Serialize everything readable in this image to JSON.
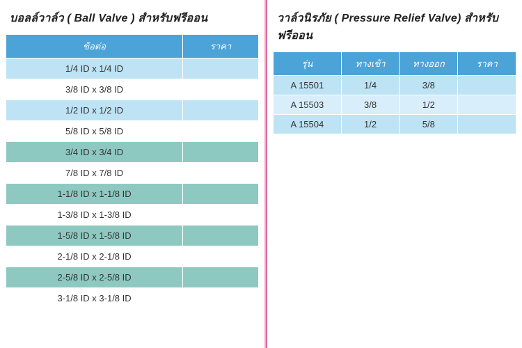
{
  "left": {
    "title": "บอลล์วาล์ว ( Ball Valve ) สำหรับฟรีออน",
    "columns": [
      "ข้อต่อ",
      "ราคา"
    ],
    "col_widths": [
      "70%",
      "30%"
    ],
    "header_bg": "#4ba3d8",
    "header_fg": "#ffffff",
    "row_colors_alt": [
      "#bde3f4",
      "#ffffff",
      "#bde3f4",
      "#ffffff",
      "#8ec9c1",
      "#ffffff",
      "#8ec9c1",
      "#ffffff",
      "#8ec9c1",
      "#ffffff",
      "#8ec9c1",
      "#ffffff"
    ],
    "rows": [
      [
        "1/4 ID x 1/4 ID",
        ""
      ],
      [
        "3/8 ID x 3/8 ID",
        ""
      ],
      [
        "1/2 ID x 1/2 ID",
        ""
      ],
      [
        "5/8 ID x 5/8 ID",
        ""
      ],
      [
        "3/4 ID x 3/4 ID",
        ""
      ],
      [
        "7/8 ID x 7/8 ID",
        ""
      ],
      [
        "1-1/8 ID x 1-1/8 ID",
        ""
      ],
      [
        "1-3/8 ID x 1-3/8 ID",
        ""
      ],
      [
        "1-5/8 ID x 1-5/8 ID",
        ""
      ],
      [
        "2-1/8 ID x 2-1/8 ID",
        ""
      ],
      [
        "2-5/8 ID x 2-5/8 ID",
        ""
      ],
      [
        "3-1/8 ID x 3-1/8 ID",
        ""
      ]
    ]
  },
  "right": {
    "title": "วาล์วนิรภัย  ( Pressure Relief Valve) สำหรับฟรีออน",
    "columns": [
      "รุ่น",
      "ทางเข้า",
      "ทางออก",
      "ราคา"
    ],
    "col_widths": [
      "28%",
      "24%",
      "24%",
      "24%"
    ],
    "header_bg": "#4ba3d8",
    "header_fg": "#ffffff",
    "row_colors_alt": [
      "#bde3f4",
      "#d9eefb",
      "#bde3f4"
    ],
    "rows": [
      [
        "A 15501",
        "1/4",
        "3/8",
        ""
      ],
      [
        "A  15503",
        "3/8",
        "1/2",
        ""
      ],
      [
        "A 15504",
        "1/2",
        "5/8",
        ""
      ]
    ]
  },
  "styling": {
    "title_fontsize": 16,
    "cell_fontsize": 13,
    "divider_color_light": "#f7a8c4",
    "divider_color_dark": "#d66ba0",
    "page_bg": "#ffffff"
  }
}
